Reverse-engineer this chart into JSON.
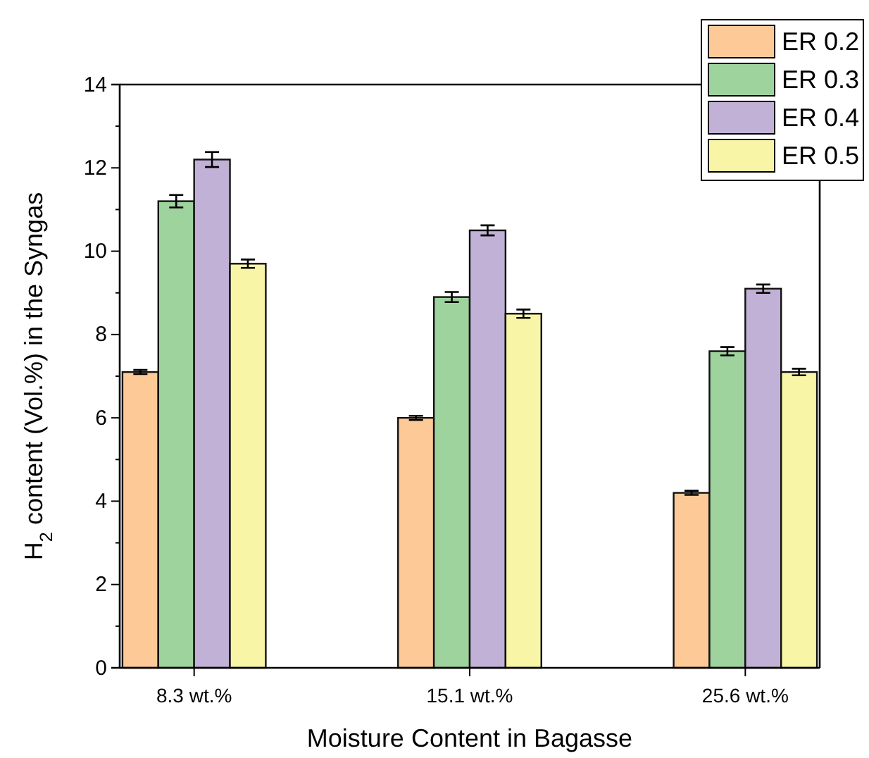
{
  "chart_data": {
    "type": "bar",
    "xlabel": "Moisture Content in Bagasse",
    "ylabel": "H$_{2}$ content (Vol.%) in the Syngas",
    "categories": [
      "8.3 wt.%",
      "15.1 wt.%",
      "25.6 wt.%"
    ],
    "series": [
      {
        "name": "ER 0.2",
        "color": "#fdc997",
        "values": [
          7.1,
          6.0,
          4.2
        ],
        "errors": [
          0.05,
          0.05,
          0.05
        ]
      },
      {
        "name": "ER 0.3",
        "color": "#9fd39d",
        "values": [
          11.2,
          8.9,
          7.6
        ],
        "errors": [
          0.15,
          0.12,
          0.1
        ]
      },
      {
        "name": "ER 0.4",
        "color": "#c1b1d6",
        "values": [
          12.2,
          10.5,
          9.1
        ],
        "errors": [
          0.18,
          0.12,
          0.1
        ]
      },
      {
        "name": "ER 0.5",
        "color": "#f8f5a6",
        "values": [
          9.7,
          8.5,
          7.1
        ],
        "errors": [
          0.1,
          0.1,
          0.08
        ]
      }
    ],
    "ylim": [
      0,
      14
    ],
    "yticks": [
      0,
      {
        "value": 1,
        "label": null
      },
      2,
      {
        "value": 3,
        "label": null
      },
      4,
      {
        "value": 5,
        "label": null
      },
      6,
      {
        "value": 7,
        "label": null
      },
      8,
      {
        "value": 9,
        "label": null
      },
      10,
      {
        "value": 11,
        "label": null
      },
      12,
      {
        "value": 13,
        "label": null
      },
      14
    ],
    "grid": false,
    "legend": "top right"
  }
}
